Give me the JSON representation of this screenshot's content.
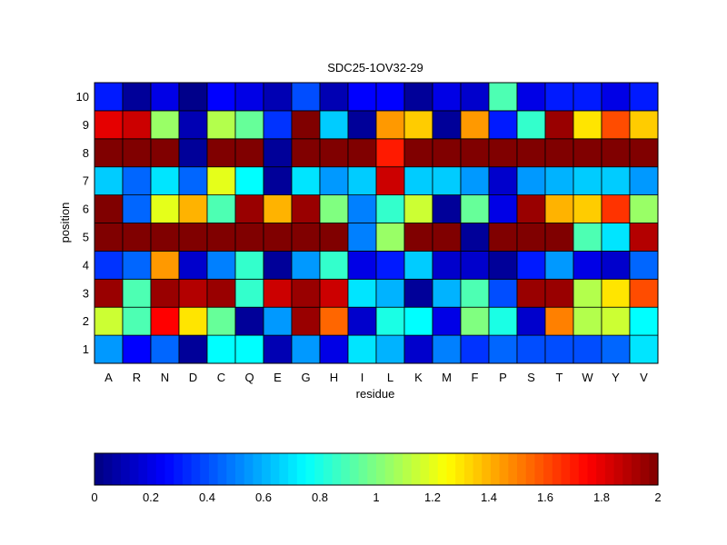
{
  "chart_data": {
    "type": "heatmap",
    "title": "SDC25-1OV32-29",
    "xlabel": "residue",
    "ylabel": "position",
    "x_categories": [
      "A",
      "R",
      "N",
      "D",
      "C",
      "Q",
      "E",
      "G",
      "H",
      "I",
      "L",
      "K",
      "M",
      "F",
      "P",
      "S",
      "T",
      "W",
      "Y",
      "V"
    ],
    "y_categories": [
      "1",
      "2",
      "3",
      "4",
      "5",
      "6",
      "7",
      "8",
      "9",
      "10"
    ],
    "values": [
      [
        0.55,
        0.25,
        0.45,
        0.05,
        0.75,
        0.75,
        0.1,
        0.55,
        0.2,
        0.7,
        0.6,
        0.15,
        0.5,
        0.35,
        0.45,
        0.4,
        0.4,
        0.4,
        0.45,
        0.7
      ],
      [
        1.15,
        0.9,
        1.75,
        1.3,
        0.95,
        0.05,
        0.55,
        1.95,
        1.55,
        0.15,
        0.8,
        0.75,
        0.2,
        1.0,
        0.8,
        0.15,
        1.5,
        1.1,
        1.15,
        0.75
      ],
      [
        1.95,
        0.9,
        1.95,
        1.9,
        1.95,
        0.85,
        1.85,
        1.95,
        1.85,
        0.7,
        0.6,
        0.05,
        0.6,
        0.9,
        0.4,
        1.95,
        1.95,
        1.1,
        1.3,
        1.6
      ],
      [
        0.35,
        0.45,
        1.45,
        0.15,
        0.5,
        0.85,
        0.05,
        0.55,
        0.85,
        0.2,
        0.3,
        0.65,
        0.15,
        0.15,
        0.05,
        0.3,
        0.55,
        0.2,
        0.15,
        0.45
      ],
      [
        2.0,
        2.0,
        2.0,
        2.0,
        2.0,
        2.0,
        2.0,
        2.0,
        2.0,
        0.5,
        1.05,
        2.0,
        2.0,
        0.05,
        2.0,
        2.0,
        2.0,
        0.9,
        0.7,
        1.9
      ],
      [
        2.0,
        0.45,
        1.2,
        1.4,
        0.9,
        1.95,
        1.4,
        1.95,
        1.0,
        0.5,
        0.85,
        1.15,
        0.05,
        0.95,
        0.2,
        1.95,
        1.4,
        1.35,
        1.65,
        1.05
      ],
      [
        0.65,
        0.45,
        0.7,
        0.45,
        1.2,
        0.75,
        0.05,
        0.7,
        0.55,
        0.65,
        1.85,
        0.65,
        0.65,
        0.55,
        0.15,
        0.55,
        0.6,
        0.65,
        0.65,
        0.55
      ],
      [
        2.0,
        2.0,
        2.0,
        0.05,
        2.0,
        2.0,
        0.05,
        2.0,
        2.0,
        2.0,
        1.7,
        2.0,
        2.0,
        2.0,
        2.0,
        2.0,
        2.0,
        2.0,
        2.0,
        2.0
      ],
      [
        1.8,
        1.85,
        1.05,
        0.1,
        1.1,
        0.95,
        0.35,
        2.0,
        0.65,
        0.05,
        1.45,
        1.35,
        0.05,
        1.45,
        0.3,
        0.85,
        1.95,
        1.3,
        1.6,
        1.35
      ],
      [
        0.3,
        0.05,
        0.2,
        0.02,
        0.25,
        0.2,
        0.1,
        0.4,
        0.1,
        0.25,
        0.25,
        0.05,
        0.2,
        0.15,
        0.9,
        0.2,
        0.3,
        0.3,
        0.2,
        0.3
      ]
    ],
    "colormap": "jet",
    "colorbar": {
      "min": 0,
      "max": 2,
      "ticks": [
        "0",
        "0.2",
        "0.4",
        "0.6",
        "0.8",
        "1",
        "1.2",
        "1.4",
        "1.6",
        "1.8",
        "2"
      ],
      "placement": "bottom"
    },
    "grid": false
  }
}
